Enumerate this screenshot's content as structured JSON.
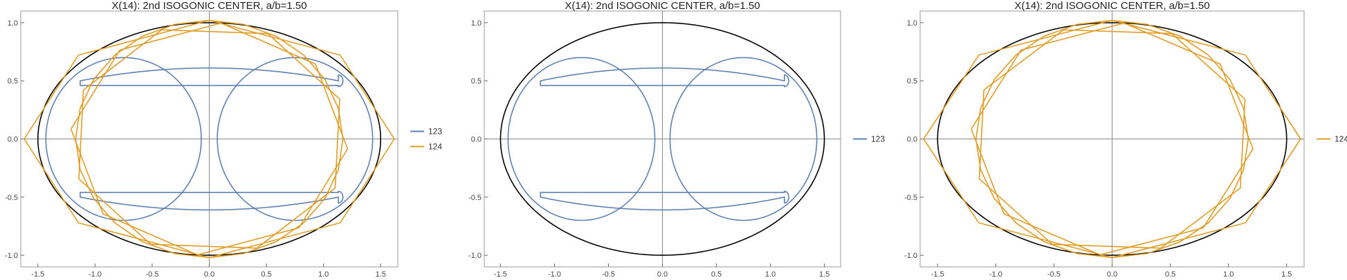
{
  "colors": {
    "ellipse": "#000000",
    "series_123": "#5e81b5",
    "series_124": "#e19c24",
    "axis": "#888888",
    "frame": "#999999"
  },
  "chart_data": [
    {
      "type": "line",
      "title": "X(14): 2nd ISOGONIC CENTER, a/b=1.50",
      "xlim": [
        -1.65,
        1.65
      ],
      "ylim": [
        -1.1,
        1.1
      ],
      "xticks": [
        -1.5,
        -1.0,
        -0.5,
        0.0,
        0.5,
        1.0,
        1.5
      ],
      "xtick_labels": [
        "-1.5",
        "-1.0",
        "-0.5",
        "0.0",
        "0.5",
        "1.0",
        "1.5"
      ],
      "yticks": [
        -1.0,
        -0.5,
        0.0,
        0.5,
        1.0
      ],
      "ytick_labels": [
        "-1.0",
        "-0.5",
        "0.0",
        "0.5",
        "1.0"
      ],
      "ellipse": {
        "a": 1.5,
        "b": 1.0
      },
      "legend_position": "right",
      "series": [
        {
          "name": "123",
          "kind": "loci",
          "color": "#5e81b5"
        },
        {
          "name": "124",
          "kind": "polygonal",
          "color": "#e19c24"
        }
      ]
    },
    {
      "type": "line",
      "title": "X(14): 2nd ISOGONIC CENTER, a/b=1.50",
      "xlim": [
        -1.65,
        1.65
      ],
      "ylim": [
        -1.1,
        1.1
      ],
      "xticks": [
        -1.5,
        -1.0,
        -0.5,
        0.0,
        0.5,
        1.0,
        1.5
      ],
      "xtick_labels": [
        "-1.5",
        "-1.0",
        "-0.5",
        "0.0",
        "0.5",
        "1.0",
        "1.5"
      ],
      "yticks": [
        -1.0,
        -0.5,
        0.0,
        0.5,
        1.0
      ],
      "ytick_labels": [
        "-1.0",
        "-0.5",
        "0.0",
        "0.5",
        "1.0"
      ],
      "ellipse": {
        "a": 1.5,
        "b": 1.0
      },
      "legend_position": "right",
      "series": [
        {
          "name": "123",
          "kind": "loci",
          "color": "#5e81b5"
        }
      ]
    },
    {
      "type": "line",
      "title": "X(14): 2nd ISOGONIC CENTER, a/b=1.50",
      "xlim": [
        -1.65,
        1.65
      ],
      "ylim": [
        -1.1,
        1.1
      ],
      "xticks": [
        -1.5,
        -1.0,
        -0.5,
        0.0,
        0.5,
        1.0,
        1.5
      ],
      "xtick_labels": [
        "-1.5",
        "-1.0",
        "-0.5",
        "0.0",
        "0.5",
        "1.0",
        "1.5"
      ],
      "yticks": [
        -1.0,
        -0.5,
        0.0,
        0.5,
        1.0
      ],
      "ytick_labels": [
        "-1.0",
        "-0.5",
        "0.0",
        "0.5",
        "1.0"
      ],
      "ellipse": {
        "a": 1.5,
        "b": 1.0
      },
      "legend_position": "right",
      "series": [
        {
          "name": "124",
          "kind": "polygonal",
          "color": "#e19c24"
        }
      ]
    }
  ]
}
